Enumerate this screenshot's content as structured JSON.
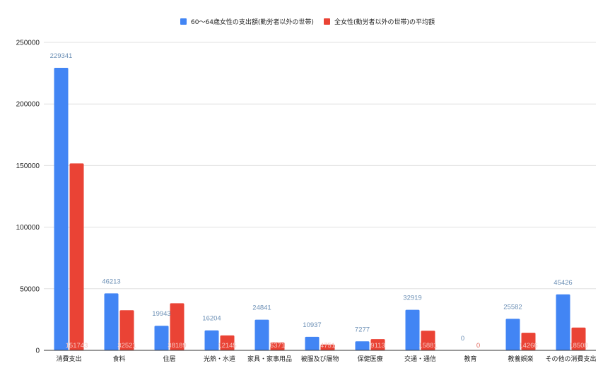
{
  "chart_data": {
    "type": "bar",
    "title": "",
    "xlabel": "",
    "ylabel": "",
    "ylim": [
      0,
      250000
    ],
    "yticks": [
      0,
      50000,
      100000,
      150000,
      200000,
      250000
    ],
    "grid": true,
    "legend_position": "top",
    "categories": [
      "消費支出",
      "食料",
      "住居",
      "光熱・水道",
      "家具・家事用品",
      "被服及び履物",
      "保健医療",
      "交通・通信",
      "教育",
      "教養娯楽",
      "その他の消費支出"
    ],
    "series": [
      {
        "name": "60〜64歳女性の支出額(勤労者以外の世帯)",
        "color": "#4285f4",
        "label_color": "#6b8fb5",
        "values": [
          229341,
          46213,
          19943,
          16204,
          24841,
          10937,
          7277,
          32919,
          0,
          25582,
          45426
        ]
      },
      {
        "name": "全女性(勤労者以外の世帯)の平均額",
        "color": "#ea4335",
        "label_color": "#f6c6c1",
        "values": [
          151743,
          32521,
          38189,
          12145,
          6371,
          4751,
          9113,
          15881,
          0,
          14266,
          18508
        ]
      }
    ]
  },
  "legend": {
    "items": [
      {
        "label": "60〜64歳女性の支出額(勤労者以外の世帯)",
        "color": "#4285f4"
      },
      {
        "label": "全女性(勤労者以外の世帯)の平均額",
        "color": "#ea4335"
      }
    ]
  },
  "colors": {
    "grid": "#e0e0e0",
    "axis": "#333333",
    "tick_text": "#222222"
  }
}
